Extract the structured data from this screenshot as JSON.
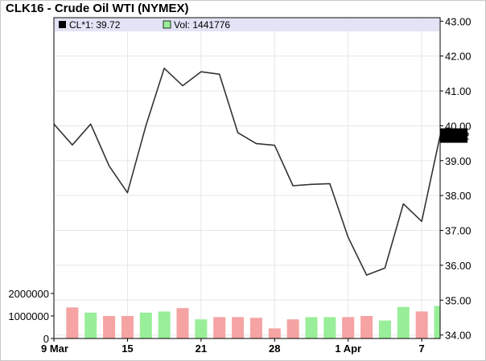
{
  "title": "CLK16 - Crude Oil WTI (NYMEX)",
  "legend": {
    "close_label": "CL*1: 39.72",
    "volume_label": "Vol: 1441776"
  },
  "last_price_label": "39.72",
  "colors": {
    "price_line": "#333333",
    "vol_up": "#99ee99",
    "vol_down": "#f5a3a3",
    "legend_band": "#e2e3f5",
    "last_price_bg": "#000000",
    "last_price_text": "#ffffff"
  },
  "chart_data": {
    "type": "line",
    "title": "CLK16 - Crude Oil WTI (NYMEX)",
    "x_tick_labels": [
      "9 Mar",
      "15",
      "21",
      "28",
      "1 Apr",
      "7"
    ],
    "price_axis": {
      "ylim": [
        33.9,
        43.1
      ],
      "ticks": [
        "43.00",
        "42.00",
        "41.00",
        "40.00",
        "39.00",
        "38.00",
        "37.00",
        "36.00",
        "35.00",
        "34.00"
      ]
    },
    "volume_axis": {
      "ylim": [
        0,
        2000000
      ],
      "ticks": [
        "2000000",
        "1000000",
        "0"
      ]
    },
    "series": [
      {
        "name": "CL*1",
        "dates": [
          "Mar 9",
          "Mar 10",
          "Mar 11",
          "Mar 14",
          "Mar 15",
          "Mar 16",
          "Mar 17",
          "Mar 18",
          "Mar 21",
          "Mar 22",
          "Mar 23",
          "Mar 24",
          "Mar 28",
          "Mar 29",
          "Mar 30",
          "Mar 31",
          "Apr 1",
          "Apr 4",
          "Apr 5",
          "Apr 6",
          "Apr 7",
          "Apr 8"
        ],
        "values": [
          40.05,
          39.45,
          40.05,
          38.85,
          38.08,
          40.0,
          41.65,
          41.15,
          41.55,
          41.48,
          39.8,
          39.49,
          39.44,
          38.28,
          38.32,
          38.34,
          36.8,
          35.72,
          35.92,
          37.76,
          37.26,
          39.72
        ]
      },
      {
        "name": "Vol",
        "values": [
          1380000,
          1150000,
          1000000,
          1000000,
          1150000,
          1200000,
          1350000,
          850000,
          950000,
          950000,
          920000,
          450000,
          850000,
          950000,
          950000,
          950000,
          1000000,
          800000,
          1400000,
          1200000,
          1441776
        ],
        "direction": [
          "down",
          "up",
          "down",
          "down",
          "up",
          "up",
          "down",
          "up",
          "down",
          "down",
          "down",
          "down",
          "down",
          "up",
          "up",
          "down",
          "down",
          "up",
          "up",
          "down",
          "up"
        ]
      }
    ],
    "grid": true,
    "legend_position": "top-left"
  }
}
